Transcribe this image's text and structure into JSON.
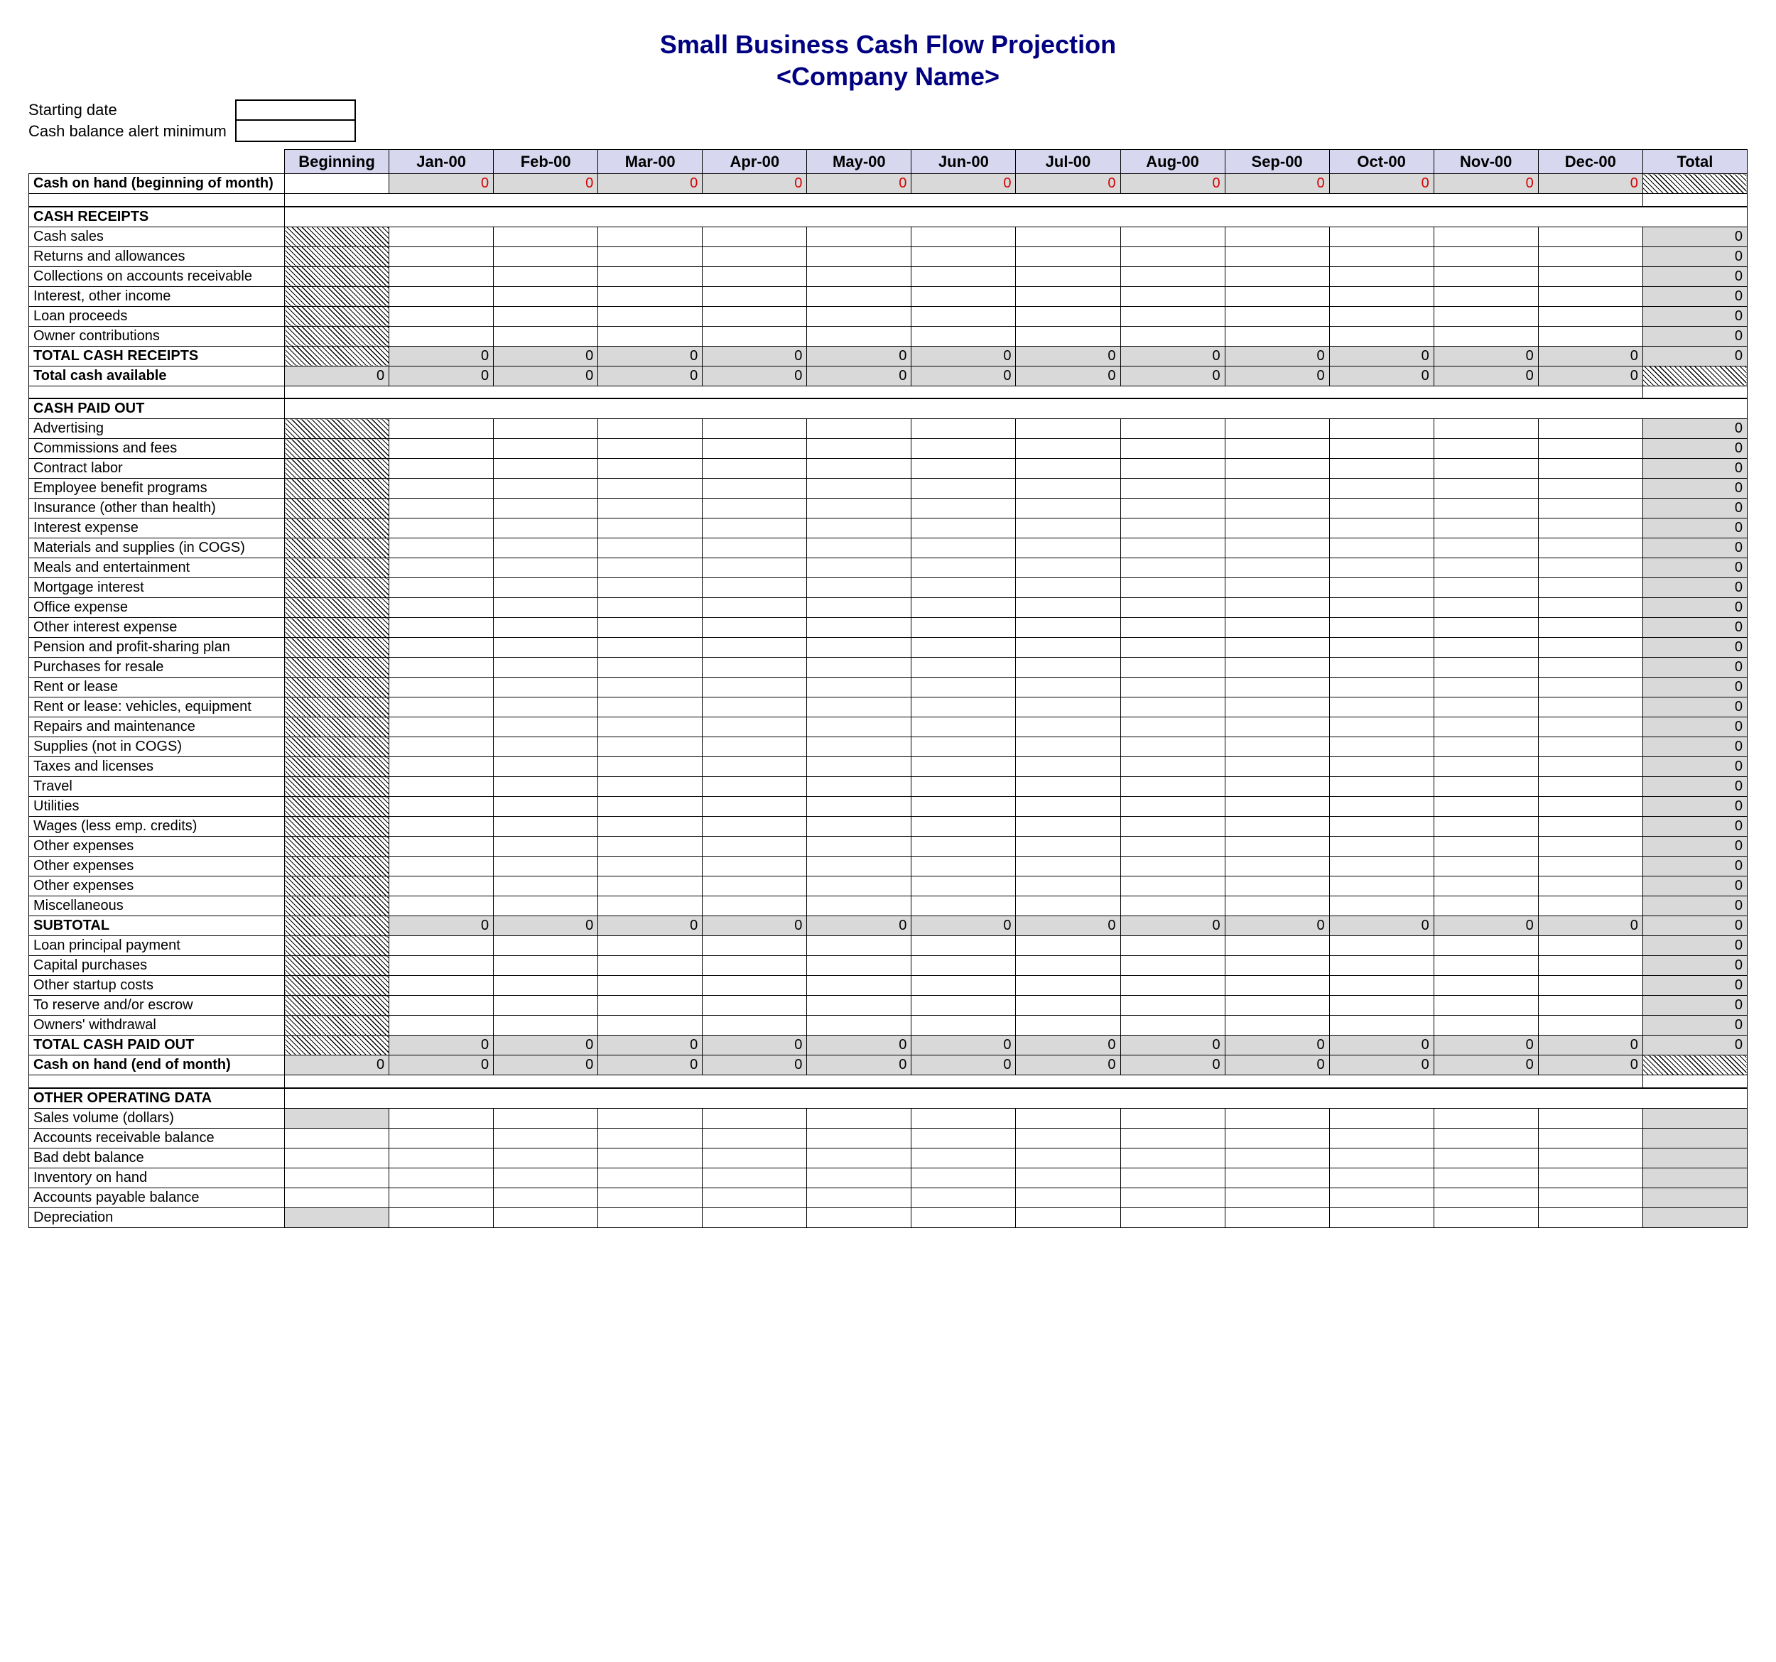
{
  "title_line1": "Small Business Cash Flow Projection",
  "title_line2": "<Company Name>",
  "inputs": {
    "starting_date_label": "Starting date",
    "min_balance_label": "Cash balance alert minimum",
    "starting_date_value": "",
    "min_balance_value": ""
  },
  "columns": [
    "Beginning",
    "Jan-00",
    "Feb-00",
    "Mar-00",
    "Apr-00",
    "May-00",
    "Jun-00",
    "Jul-00",
    "Aug-00",
    "Sep-00",
    "Oct-00",
    "Nov-00",
    "Dec-00",
    "Total"
  ],
  "colors": {
    "title": "#000080",
    "header_bg": "#d7d7f0",
    "grey_bg": "#d9d9d9",
    "red": "#d40000",
    "border": "#000000",
    "background": "#ffffff"
  },
  "rows": [
    {
      "id": "coh_begin",
      "type": "tall",
      "label": "Cash on hand (beginning of month)",
      "bold": true,
      "cells": [
        {
          "v": "",
          "cls": ""
        },
        {
          "v": "0",
          "cls": "grey red"
        },
        {
          "v": "0",
          "cls": "grey red"
        },
        {
          "v": "0",
          "cls": "grey red"
        },
        {
          "v": "0",
          "cls": "grey red"
        },
        {
          "v": "0",
          "cls": "grey red"
        },
        {
          "v": "0",
          "cls": "grey red"
        },
        {
          "v": "0",
          "cls": "grey red"
        },
        {
          "v": "0",
          "cls": "grey red"
        },
        {
          "v": "0",
          "cls": "grey red"
        },
        {
          "v": "0",
          "cls": "grey red"
        },
        {
          "v": "0",
          "cls": "grey red"
        },
        {
          "v": "0",
          "cls": "grey red"
        },
        {
          "v": "",
          "cls": "hatch"
        }
      ]
    },
    {
      "type": "spacer"
    },
    {
      "id": "sec_receipts",
      "type": "section",
      "label": "CASH RECEIPTS"
    },
    {
      "id": "cash_sales",
      "type": "line",
      "label": "Cash sales",
      "begin": "hatch",
      "total": {
        "v": "0",
        "cls": "grey"
      }
    },
    {
      "id": "returns",
      "type": "line",
      "label": "Returns and allowances",
      "begin": "hatch",
      "total": {
        "v": "0",
        "cls": "grey"
      }
    },
    {
      "id": "ar",
      "type": "line",
      "label": "Collections on accounts receivable",
      "begin": "hatch",
      "total": {
        "v": "0",
        "cls": "grey"
      }
    },
    {
      "id": "interest_inc",
      "type": "line",
      "label": "Interest, other income",
      "begin": "hatch",
      "total": {
        "v": "0",
        "cls": "grey"
      }
    },
    {
      "id": "loan",
      "type": "line",
      "label": "Loan proceeds",
      "begin": "hatch",
      "total": {
        "v": "0",
        "cls": "grey"
      }
    },
    {
      "id": "owner_contrib",
      "type": "line",
      "label": "Owner contributions",
      "begin": "hatch",
      "total": {
        "v": "0",
        "cls": "grey"
      }
    },
    {
      "id": "tot_receipts",
      "type": "totals",
      "label": "TOTAL CASH RECEIPTS",
      "bold": true,
      "cells": [
        {
          "v": "",
          "cls": "hatch"
        },
        {
          "v": "0",
          "cls": "grey"
        },
        {
          "v": "0",
          "cls": "grey"
        },
        {
          "v": "0",
          "cls": "grey"
        },
        {
          "v": "0",
          "cls": "grey"
        },
        {
          "v": "0",
          "cls": "grey"
        },
        {
          "v": "0",
          "cls": "grey"
        },
        {
          "v": "0",
          "cls": "grey"
        },
        {
          "v": "0",
          "cls": "grey"
        },
        {
          "v": "0",
          "cls": "grey"
        },
        {
          "v": "0",
          "cls": "grey"
        },
        {
          "v": "0",
          "cls": "grey"
        },
        {
          "v": "0",
          "cls": "grey"
        },
        {
          "v": "0",
          "cls": "grey"
        }
      ]
    },
    {
      "id": "tot_avail",
      "type": "totals",
      "label": "Total cash available",
      "bold": true,
      "cells": [
        {
          "v": "0",
          "cls": "grey"
        },
        {
          "v": "0",
          "cls": "grey"
        },
        {
          "v": "0",
          "cls": "grey"
        },
        {
          "v": "0",
          "cls": "grey"
        },
        {
          "v": "0",
          "cls": "grey"
        },
        {
          "v": "0",
          "cls": "grey"
        },
        {
          "v": "0",
          "cls": "grey"
        },
        {
          "v": "0",
          "cls": "grey"
        },
        {
          "v": "0",
          "cls": "grey"
        },
        {
          "v": "0",
          "cls": "grey"
        },
        {
          "v": "0",
          "cls": "grey"
        },
        {
          "v": "0",
          "cls": "grey"
        },
        {
          "v": "0",
          "cls": "grey"
        },
        {
          "v": "",
          "cls": "hatch"
        }
      ]
    },
    {
      "type": "spacer"
    },
    {
      "id": "sec_paid",
      "type": "section",
      "label": "CASH PAID OUT"
    },
    {
      "id": "adv",
      "type": "line",
      "label": "Advertising",
      "begin": "hatch",
      "total": {
        "v": "0",
        "cls": "grey"
      }
    },
    {
      "id": "comm",
      "type": "line",
      "label": "Commissions and fees",
      "begin": "hatch",
      "total": {
        "v": "0",
        "cls": "grey"
      }
    },
    {
      "id": "contract",
      "type": "line",
      "label": "Contract labor",
      "begin": "hatch",
      "total": {
        "v": "0",
        "cls": "grey"
      }
    },
    {
      "id": "emp_ben",
      "type": "line",
      "label": "Employee benefit programs",
      "begin": "hatch",
      "total": {
        "v": "0",
        "cls": "grey"
      }
    },
    {
      "id": "insurance",
      "type": "line",
      "label": "Insurance (other than health)",
      "begin": "hatch",
      "total": {
        "v": "0",
        "cls": "grey"
      }
    },
    {
      "id": "int_exp",
      "type": "line",
      "label": "Interest expense",
      "begin": "hatch",
      "total": {
        "v": "0",
        "cls": "grey"
      }
    },
    {
      "id": "materials",
      "type": "line",
      "label": "Materials and supplies (in COGS)",
      "begin": "hatch",
      "total": {
        "v": "0",
        "cls": "grey"
      }
    },
    {
      "id": "meals",
      "type": "line",
      "label": "Meals and entertainment",
      "begin": "hatch",
      "total": {
        "v": "0",
        "cls": "grey"
      }
    },
    {
      "id": "mortgage",
      "type": "line",
      "label": "Mortgage interest",
      "begin": "hatch",
      "total": {
        "v": "0",
        "cls": "grey"
      }
    },
    {
      "id": "office",
      "type": "line",
      "label": "Office expense",
      "begin": "hatch",
      "total": {
        "v": "0",
        "cls": "grey"
      }
    },
    {
      "id": "other_int",
      "type": "line",
      "label": "Other interest expense",
      "begin": "hatch",
      "total": {
        "v": "0",
        "cls": "grey"
      }
    },
    {
      "id": "pension",
      "type": "line",
      "label": "Pension and profit-sharing plan",
      "begin": "hatch",
      "total": {
        "v": "0",
        "cls": "grey"
      }
    },
    {
      "id": "purchases",
      "type": "line",
      "label": "Purchases for resale",
      "begin": "hatch",
      "total": {
        "v": "0",
        "cls": "grey"
      }
    },
    {
      "id": "rent",
      "type": "line",
      "label": "Rent or lease",
      "begin": "hatch",
      "total": {
        "v": "0",
        "cls": "grey"
      }
    },
    {
      "id": "rent_veh",
      "type": "line",
      "label": "Rent or lease: vehicles, equipment",
      "begin": "hatch",
      "total": {
        "v": "0",
        "cls": "grey"
      }
    },
    {
      "id": "repairs",
      "type": "line",
      "label": "Repairs and maintenance",
      "begin": "hatch",
      "total": {
        "v": "0",
        "cls": "grey"
      }
    },
    {
      "id": "supplies",
      "type": "line",
      "label": "Supplies (not in COGS)",
      "begin": "hatch",
      "total": {
        "v": "0",
        "cls": "grey"
      }
    },
    {
      "id": "taxes",
      "type": "line",
      "label": "Taxes and licenses",
      "begin": "hatch",
      "total": {
        "v": "0",
        "cls": "grey"
      }
    },
    {
      "id": "travel",
      "type": "line",
      "label": "Travel",
      "begin": "hatch",
      "total": {
        "v": "0",
        "cls": "grey"
      }
    },
    {
      "id": "utilities",
      "type": "line",
      "label": "Utilities",
      "begin": "hatch",
      "total": {
        "v": "0",
        "cls": "grey"
      }
    },
    {
      "id": "wages",
      "type": "line",
      "label": "Wages (less emp. credits)",
      "begin": "hatch",
      "total": {
        "v": "0",
        "cls": "grey"
      }
    },
    {
      "id": "other1",
      "type": "line",
      "label": "Other expenses",
      "begin": "hatch",
      "total": {
        "v": "0",
        "cls": "grey"
      }
    },
    {
      "id": "other2",
      "type": "line",
      "label": "Other expenses",
      "begin": "hatch",
      "total": {
        "v": "0",
        "cls": "grey"
      }
    },
    {
      "id": "other3",
      "type": "line",
      "label": "Other expenses",
      "begin": "hatch",
      "total": {
        "v": "0",
        "cls": "grey"
      }
    },
    {
      "id": "misc",
      "type": "line",
      "label": "Miscellaneous",
      "begin": "hatch",
      "total": {
        "v": "0",
        "cls": "grey"
      }
    },
    {
      "id": "subtotal",
      "type": "totals",
      "label": "SUBTOTAL",
      "bold": true,
      "cells": [
        {
          "v": "",
          "cls": "hatch"
        },
        {
          "v": "0",
          "cls": "grey"
        },
        {
          "v": "0",
          "cls": "grey"
        },
        {
          "v": "0",
          "cls": "grey"
        },
        {
          "v": "0",
          "cls": "grey"
        },
        {
          "v": "0",
          "cls": "grey"
        },
        {
          "v": "0",
          "cls": "grey"
        },
        {
          "v": "0",
          "cls": "grey"
        },
        {
          "v": "0",
          "cls": "grey"
        },
        {
          "v": "0",
          "cls": "grey"
        },
        {
          "v": "0",
          "cls": "grey"
        },
        {
          "v": "0",
          "cls": "grey"
        },
        {
          "v": "0",
          "cls": "grey"
        },
        {
          "v": "0",
          "cls": "grey"
        }
      ]
    },
    {
      "id": "loan_princ",
      "type": "line",
      "label": "Loan principal payment",
      "begin": "hatch",
      "total": {
        "v": "0",
        "cls": "grey"
      }
    },
    {
      "id": "capital",
      "type": "line",
      "label": "Capital purchases",
      "begin": "hatch",
      "total": {
        "v": "0",
        "cls": "grey"
      }
    },
    {
      "id": "startup",
      "type": "line",
      "label": "Other startup costs",
      "begin": "hatch",
      "total": {
        "v": "0",
        "cls": "grey"
      }
    },
    {
      "id": "reserve",
      "type": "line",
      "label": "To reserve and/or escrow",
      "begin": "hatch",
      "total": {
        "v": "0",
        "cls": "grey"
      }
    },
    {
      "id": "withdrawal",
      "type": "line",
      "label": "Owners' withdrawal",
      "begin": "hatch",
      "total": {
        "v": "0",
        "cls": "grey"
      }
    },
    {
      "id": "tot_paid",
      "type": "totals",
      "label": "TOTAL CASH PAID OUT",
      "bold": true,
      "cells": [
        {
          "v": "",
          "cls": "hatch"
        },
        {
          "v": "0",
          "cls": "grey"
        },
        {
          "v": "0",
          "cls": "grey"
        },
        {
          "v": "0",
          "cls": "grey"
        },
        {
          "v": "0",
          "cls": "grey"
        },
        {
          "v": "0",
          "cls": "grey"
        },
        {
          "v": "0",
          "cls": "grey"
        },
        {
          "v": "0",
          "cls": "grey"
        },
        {
          "v": "0",
          "cls": "grey"
        },
        {
          "v": "0",
          "cls": "grey"
        },
        {
          "v": "0",
          "cls": "grey"
        },
        {
          "v": "0",
          "cls": "grey"
        },
        {
          "v": "0",
          "cls": "grey"
        },
        {
          "v": "0",
          "cls": "grey"
        }
      ]
    },
    {
      "id": "coh_end",
      "type": "totals",
      "label": "Cash on hand (end of month)",
      "bold": true,
      "cells": [
        {
          "v": "0",
          "cls": "grey"
        },
        {
          "v": "0",
          "cls": "grey"
        },
        {
          "v": "0",
          "cls": "grey"
        },
        {
          "v": "0",
          "cls": "grey"
        },
        {
          "v": "0",
          "cls": "grey"
        },
        {
          "v": "0",
          "cls": "grey"
        },
        {
          "v": "0",
          "cls": "grey"
        },
        {
          "v": "0",
          "cls": "grey"
        },
        {
          "v": "0",
          "cls": "grey"
        },
        {
          "v": "0",
          "cls": "grey"
        },
        {
          "v": "0",
          "cls": "grey"
        },
        {
          "v": "0",
          "cls": "grey"
        },
        {
          "v": "0",
          "cls": "grey"
        },
        {
          "v": "",
          "cls": "hatch"
        }
      ]
    },
    {
      "type": "spacer"
    },
    {
      "id": "sec_other",
      "type": "section",
      "label": "OTHER OPERATING DATA"
    },
    {
      "id": "sales_vol",
      "type": "line",
      "label": "Sales volume (dollars)",
      "begin": "grey",
      "total": {
        "v": "",
        "cls": "grey"
      }
    },
    {
      "id": "ar_bal",
      "type": "line",
      "label": "Accounts receivable balance",
      "begin": "",
      "total": {
        "v": "",
        "cls": "grey"
      }
    },
    {
      "id": "bad_debt",
      "type": "line",
      "label": "Bad debt balance",
      "begin": "",
      "total": {
        "v": "",
        "cls": "grey"
      }
    },
    {
      "id": "inventory",
      "type": "line",
      "label": "Inventory on hand",
      "begin": "",
      "total": {
        "v": "",
        "cls": "grey"
      }
    },
    {
      "id": "ap_bal",
      "type": "line",
      "label": "Accounts payable balance",
      "begin": "",
      "total": {
        "v": "",
        "cls": "grey"
      }
    },
    {
      "id": "depr",
      "type": "line",
      "label": "Depreciation",
      "begin": "grey",
      "total": {
        "v": "",
        "cls": "grey"
      }
    }
  ]
}
